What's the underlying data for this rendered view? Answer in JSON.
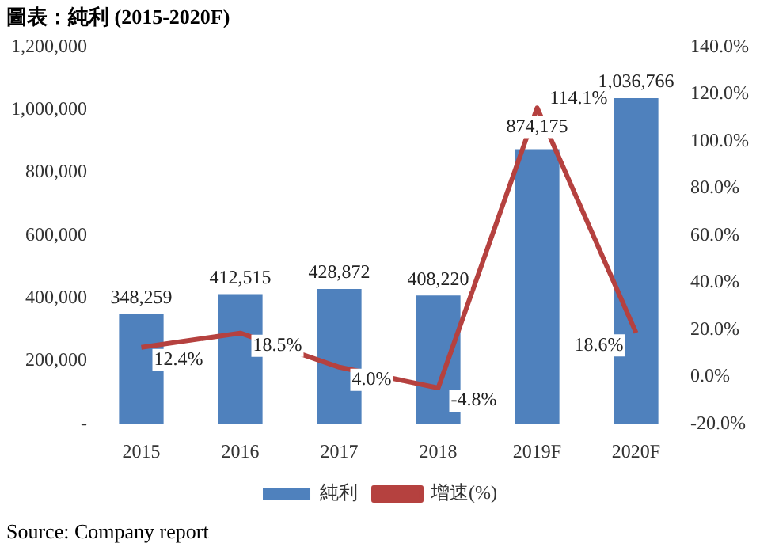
{
  "chart_data": {
    "type": "bar",
    "title": "圖表：純利 (2015-2020F)",
    "categories": [
      "2015",
      "2016",
      "2017",
      "2018",
      "2019F",
      "2020F"
    ],
    "series": [
      {
        "name": "純利",
        "color": "#4f81bd",
        "values": [
          348259,
          412515,
          428872,
          408220,
          874175,
          1036766
        ],
        "value_labels": [
          "348,259",
          "412,515",
          "428,872",
          "408,220",
          "874,175",
          "1,036,766"
        ]
      },
      {
        "name": "增速(%)",
        "type": "line",
        "axis": "y2",
        "color": "#b5413f",
        "values": [
          12.4,
          18.5,
          4.0,
          -4.8,
          114.1,
          18.6
        ],
        "value_labels": [
          "12.4%",
          "18.5%",
          "4.0%",
          "-4.8%",
          "114.1%",
          "18.6%"
        ]
      }
    ],
    "ylim": [
      0,
      1200000
    ],
    "yticks": [
      {
        "value": 0,
        "label": "-"
      },
      {
        "value": 200000,
        "label": "200,000"
      },
      {
        "value": 400000,
        "label": "400,000"
      },
      {
        "value": 600000,
        "label": "600,000"
      },
      {
        "value": 800000,
        "label": "800,000"
      },
      {
        "value": 1000000,
        "label": "1,000,000"
      },
      {
        "value": 1200000,
        "label": "1,200,000"
      }
    ],
    "y2lim": [
      -20,
      140
    ],
    "y2ticks": [
      {
        "value": -20,
        "label": "-20.0%"
      },
      {
        "value": 0,
        "label": "0.0%"
      },
      {
        "value": 20,
        "label": "20.0%"
      },
      {
        "value": 40,
        "label": "40.0%"
      },
      {
        "value": 60,
        "label": "60.0%"
      },
      {
        "value": 80,
        "label": "80.0%"
      },
      {
        "value": 100,
        "label": "100.0%"
      },
      {
        "value": 120,
        "label": "120.0%"
      },
      {
        "value": 140,
        "label": "140.0%"
      }
    ],
    "grid": false,
    "legend": "bottom",
    "marker": "none",
    "annotations": [
      "Source: Company report"
    ]
  }
}
